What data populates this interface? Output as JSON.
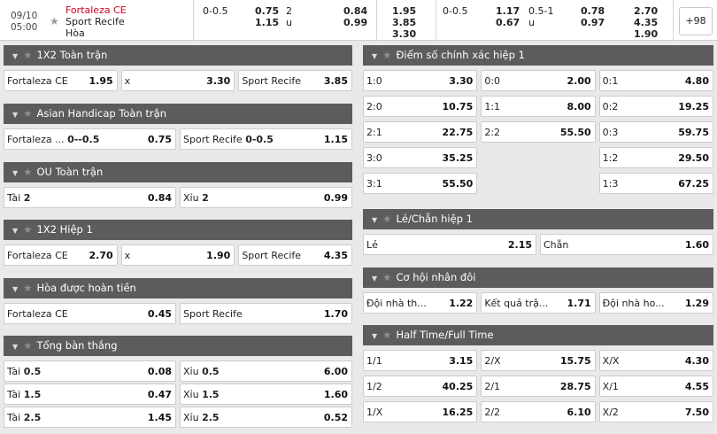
{
  "match": {
    "date": "09/10",
    "time": "05:00",
    "home": "Fortaleza CE",
    "away": "Sport Recife",
    "draw": "Hòa",
    "more": "+98",
    "full_time": {
      "handicap": "0-0.5",
      "handicap_home": "0.75",
      "handicap_away": "1.15",
      "ou_line": "2",
      "ou_u": "u",
      "ou_over": "0.84",
      "ou_under": "0.99",
      "x12_home": "1.95",
      "x12_away": "3.85",
      "x12_draw": "3.30"
    },
    "first_half": {
      "handicap": "0-0.5",
      "handicap_home": "1.17",
      "handicap_away": "0.67",
      "ou_line": "0.5-1",
      "ou_u": "u",
      "ou_over": "0.78",
      "ou_under": "0.97",
      "x12_home": "2.70",
      "x12_away": "4.35",
      "x12_draw": "1.90"
    }
  },
  "left_sections": [
    {
      "title": "1X2 Toàn trận",
      "rows": [
        [
          {
            "label": "Fortaleza CE",
            "odd": "1.95"
          },
          {
            "label": "x",
            "odd": "3.30"
          },
          {
            "label": "Sport Recife",
            "odd": "3.85"
          }
        ]
      ]
    },
    {
      "title": "Asian Handicap Toàn trận",
      "rows": [
        [
          {
            "label": "Fortaleza ...",
            "label2": "0--0.5",
            "odd": "0.75"
          },
          {
            "label": "Sport Recife",
            "label2": "0-0.5",
            "odd": "1.15"
          }
        ]
      ]
    },
    {
      "title": "OU Toàn trận",
      "rows": [
        [
          {
            "label": "Tài",
            "label2": "2",
            "odd": "0.84"
          },
          {
            "label": "Xỉu",
            "label2": "2",
            "odd": "0.99"
          }
        ]
      ]
    },
    {
      "title": "1X2 Hiệp 1",
      "rows": [
        [
          {
            "label": "Fortaleza CE",
            "odd": "2.70"
          },
          {
            "label": "x",
            "odd": "1.90"
          },
          {
            "label": "Sport Recife",
            "odd": "4.35"
          }
        ]
      ]
    },
    {
      "title": "Hòa được hoàn tiền",
      "rows": [
        [
          {
            "label": "Fortaleza CE",
            "odd": "0.45"
          },
          {
            "label": "Sport Recife",
            "odd": "1.70"
          }
        ]
      ]
    },
    {
      "title": "Tổng bàn thắng",
      "rows": [
        [
          {
            "label": "Tài",
            "label2": "0.5",
            "odd": "0.08"
          },
          {
            "label": "Xỉu",
            "label2": "0.5",
            "odd": "6.00"
          }
        ],
        [
          {
            "label": "Tài",
            "label2": "1.5",
            "odd": "0.47"
          },
          {
            "label": "Xỉu",
            "label2": "1.5",
            "odd": "1.60"
          }
        ],
        [
          {
            "label": "Tài",
            "label2": "2.5",
            "odd": "1.45"
          },
          {
            "label": "Xỉu",
            "label2": "2.5",
            "odd": "0.52"
          }
        ]
      ]
    }
  ],
  "right_sections": [
    {
      "title": "Điểm số chính xác hiệp 1",
      "rows": [
        [
          {
            "label": "1:0",
            "odd": "3.30"
          },
          {
            "label": "0:0",
            "odd": "2.00"
          },
          {
            "label": "0:1",
            "odd": "4.80"
          }
        ],
        [
          {
            "label": "2:0",
            "odd": "10.75"
          },
          {
            "label": "1:1",
            "odd": "8.00"
          },
          {
            "label": "0:2",
            "odd": "19.25"
          }
        ],
        [
          {
            "label": "2:1",
            "odd": "22.75"
          },
          {
            "label": "2:2",
            "odd": "55.50"
          },
          {
            "label": "0:3",
            "odd": "59.75"
          }
        ],
        [
          {
            "label": "3:0",
            "odd": "35.25"
          },
          null,
          {
            "label": "1:2",
            "odd": "29.50"
          }
        ],
        [
          {
            "label": "3:1",
            "odd": "55.50"
          },
          null,
          {
            "label": "1:3",
            "odd": "67.25"
          }
        ]
      ]
    },
    {
      "title": "Lẻ/Chẵn hiệp 1",
      "rows": [
        [
          {
            "label": "Lẻ",
            "odd": "2.15"
          },
          {
            "label": "Chẵn",
            "odd": "1.60"
          }
        ]
      ]
    },
    {
      "title": "Cơ hội nhân đôi",
      "rows": [
        [
          {
            "label": "Đội nhà th...",
            "odd": "1.22"
          },
          {
            "label": "Kết quả trậ...",
            "odd": "1.71"
          },
          {
            "label": "Đội nhà ho...",
            "odd": "1.29"
          }
        ]
      ]
    },
    {
      "title": "Half Time/Full Time",
      "rows": [
        [
          {
            "label": "1/1",
            "odd": "3.15"
          },
          {
            "label": "2/X",
            "odd": "15.75"
          },
          {
            "label": "X/X",
            "odd": "4.30"
          }
        ],
        [
          {
            "label": "1/2",
            "odd": "40.25"
          },
          {
            "label": "2/1",
            "odd": "28.75"
          },
          {
            "label": "X/1",
            "odd": "4.55"
          }
        ],
        [
          {
            "label": "1/X",
            "odd": "16.25"
          },
          {
            "label": "2/2",
            "odd": "6.10"
          },
          {
            "label": "X/2",
            "odd": "7.50"
          }
        ]
      ]
    }
  ]
}
